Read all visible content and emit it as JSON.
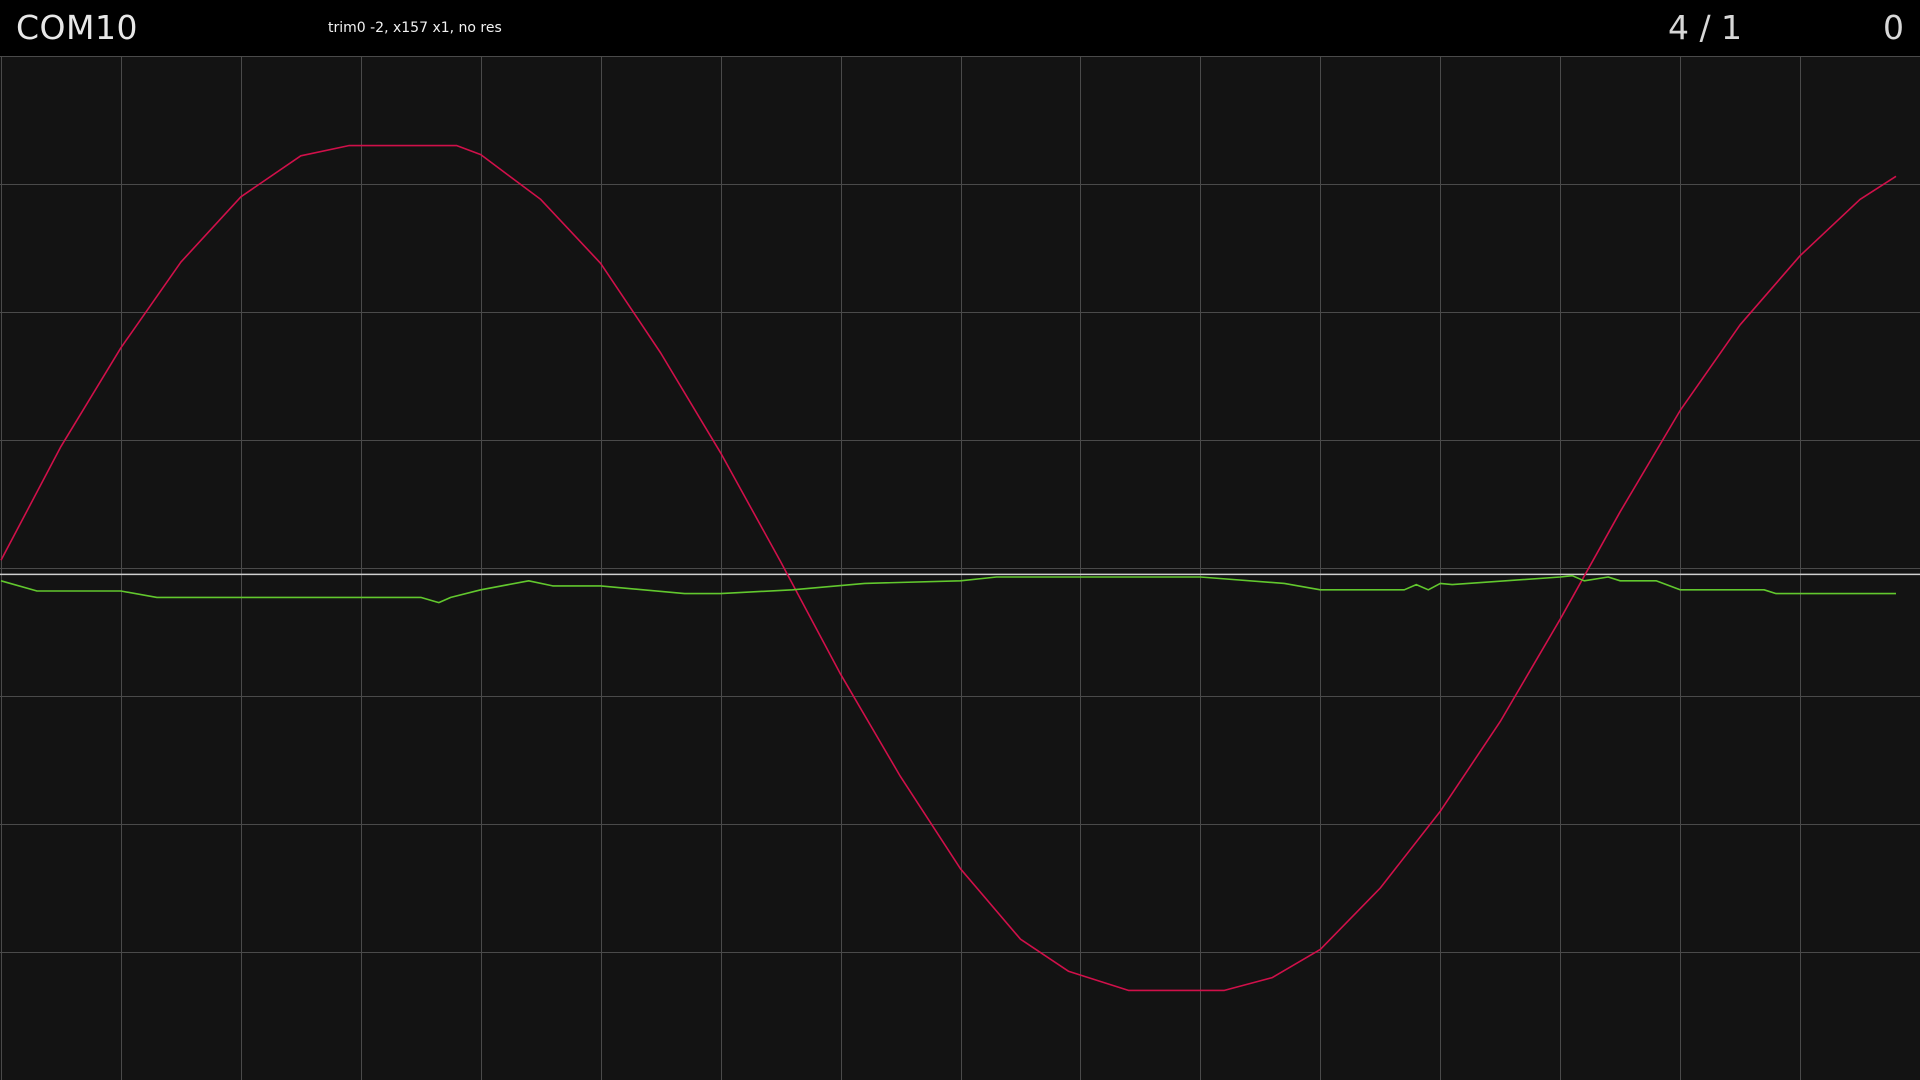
{
  "header": {
    "port_name": "COM10",
    "status_text": "trim0 -2, x157 x1, no res",
    "ratio_readout": "4 / 1",
    "count_readout": "0"
  },
  "chart_data": {
    "type": "line",
    "title": "",
    "xlabel": "",
    "ylabel": "",
    "grid": true,
    "xlim": [
      0,
      16
    ],
    "ylim": [
      -4,
      4
    ],
    "grid_divisions": {
      "x": 16,
      "y": 8
    },
    "colors": {
      "background": "#131313",
      "grid": "#4a4a4a",
      "reference": "#d0d0d0",
      "series_1": "#d0104a",
      "series_2": "#62c82e"
    },
    "reference_line": {
      "y": -0.05
    },
    "series": [
      {
        "x": [
          0,
          0.5,
          1.0,
          1.5,
          2.0,
          2.5,
          2.9,
          3.8,
          4.0,
          4.5,
          5.0,
          5.5,
          6.0,
          6.5,
          7.0,
          7.5,
          8.0,
          8.5,
          8.9,
          9.4,
          9.6,
          10.2,
          10.6,
          11.0,
          11.5,
          12.0,
          12.5,
          13.0,
          13.5,
          14.0,
          14.5,
          15.0,
          15.5,
          15.8
        ],
        "y": [
          0.06,
          0.95,
          1.72,
          2.39,
          2.9,
          3.22,
          3.3,
          3.3,
          3.23,
          2.88,
          2.38,
          1.68,
          0.9,
          0.05,
          -0.83,
          -1.63,
          -2.35,
          -2.9,
          -3.15,
          -3.3,
          -3.3,
          -3.3,
          -3.2,
          -2.98,
          -2.5,
          -1.9,
          -1.2,
          -0.4,
          0.44,
          1.23,
          1.9,
          2.44,
          2.88,
          3.06
        ]
      },
      {
        "x": [
          0,
          0.3,
          1.0,
          1.3,
          2.5,
          3.5,
          3.65,
          3.75,
          4.0,
          4.4,
          4.6,
          5.0,
          5.7,
          6.0,
          6.6,
          7.2,
          8.0,
          8.3,
          10.0,
          10.7,
          11.0,
          11.7,
          11.8,
          11.9,
          12.0,
          12.1,
          13.0,
          13.1,
          13.2,
          13.4,
          13.5,
          13.8,
          14.0,
          14.7,
          14.8,
          15.0,
          15.8
        ],
        "y": [
          -0.1,
          -0.18,
          -0.18,
          -0.23,
          -0.23,
          -0.23,
          -0.27,
          -0.23,
          -0.17,
          -0.1,
          -0.14,
          -0.14,
          -0.2,
          -0.2,
          -0.17,
          -0.12,
          -0.1,
          -0.07,
          -0.07,
          -0.12,
          -0.17,
          -0.17,
          -0.13,
          -0.17,
          -0.12,
          -0.13,
          -0.07,
          -0.06,
          -0.1,
          -0.07,
          -0.1,
          -0.1,
          -0.17,
          -0.17,
          -0.2,
          -0.2,
          -0.2
        ]
      }
    ]
  }
}
